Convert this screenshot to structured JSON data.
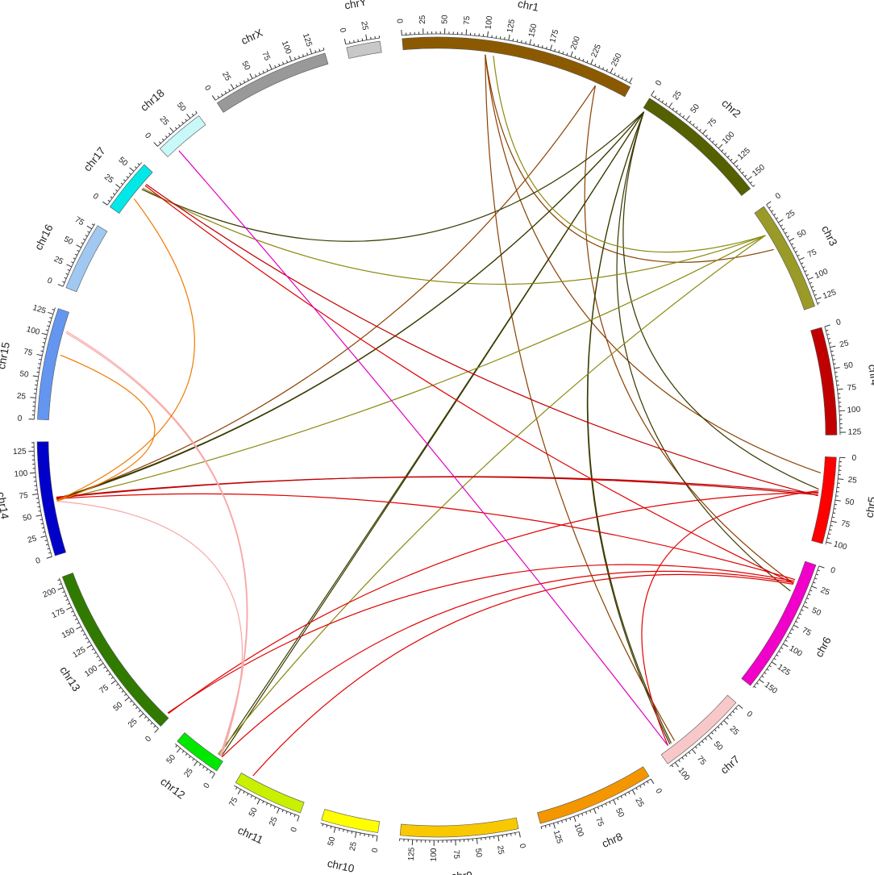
{
  "chart_data": {
    "type": "circos",
    "chromosomes": [
      {
        "name": "chr1",
        "label": "chr1",
        "length": 278,
        "color": "#8B5A00",
        "ticks": [
          0,
          25,
          50,
          75,
          100,
          125,
          150,
          175,
          200,
          225,
          250
        ]
      },
      {
        "name": "chr2",
        "label": "chr2",
        "length": 160,
        "color": "#556000",
        "ticks": [
          0,
          25,
          50,
          75,
          100,
          125,
          150
        ]
      },
      {
        "name": "chr3",
        "label": "chr3",
        "length": 132,
        "color": "#9A9A28",
        "ticks": [
          0,
          25,
          50,
          75,
          100,
          125
        ]
      },
      {
        "name": "chr4",
        "label": "chr4",
        "length": 128,
        "color": "#C00000",
        "ticks": [
          0,
          25,
          50,
          75,
          100,
          125
        ]
      },
      {
        "name": "chr5",
        "label": "chr5",
        "length": 103,
        "color": "#FF0000",
        "ticks": [
          0,
          25,
          50,
          75,
          100
        ]
      },
      {
        "name": "chr6",
        "label": "chr6",
        "length": 162,
        "color": "#F000C8",
        "ticks": [
          0,
          25,
          50,
          75,
          100,
          125,
          150
        ]
      },
      {
        "name": "chr7",
        "label": "chr7",
        "length": 108,
        "color": "#F8C8C8",
        "ticks": [
          0,
          25,
          50,
          75,
          100
        ]
      },
      {
        "name": "chr8",
        "label": "chr8",
        "length": 140,
        "color": "#F39600",
        "ticks": [
          0,
          25,
          50,
          75,
          100,
          125
        ]
      },
      {
        "name": "chr9",
        "label": "chr9",
        "length": 140,
        "color": "#F8C800",
        "ticks": [
          0,
          25,
          50,
          75,
          100,
          125
        ]
      },
      {
        "name": "chr10",
        "label": "chr10",
        "length": 68,
        "color": "#FFFF00",
        "ticks": [
          0,
          25,
          50
        ]
      },
      {
        "name": "chr11",
        "label": "chr11",
        "length": 84,
        "color": "#C8F000",
        "ticks": [
          0,
          25,
          50,
          75
        ]
      },
      {
        "name": "chr12",
        "label": "chr12",
        "length": 58,
        "color": "#00E800",
        "ticks": [
          0,
          25,
          50
        ]
      },
      {
        "name": "chr13",
        "label": "chr13",
        "length": 212,
        "color": "#307A00",
        "ticks": [
          0,
          25,
          50,
          75,
          100,
          125,
          150,
          175,
          200
        ]
      },
      {
        "name": "chr14",
        "label": "chr14",
        "length": 136,
        "color": "#0000C8",
        "ticks": [
          0,
          25,
          50,
          75,
          100,
          125
        ]
      },
      {
        "name": "chr15",
        "label": "chr15",
        "length": 133,
        "color": "#6496F0",
        "ticks": [
          0,
          25,
          50,
          75,
          100,
          125
        ]
      },
      {
        "name": "chr16",
        "label": "chr16",
        "length": 82,
        "color": "#A0C8F0",
        "ticks": [
          0,
          25,
          50,
          75
        ]
      },
      {
        "name": "chr17",
        "label": "chr17",
        "length": 64,
        "color": "#00E8E8",
        "ticks": [
          0,
          25,
          50
        ]
      },
      {
        "name": "chr18",
        "label": "chr18",
        "length": 60,
        "color": "#C8F8F8",
        "ticks": [
          0,
          25,
          50
        ]
      },
      {
        "name": "chrX",
        "label": "chrX",
        "length": 140,
        "color": "#999999",
        "ticks": [
          0,
          25,
          50,
          75,
          100,
          125
        ]
      },
      {
        "name": "chrY",
        "label": "chrY",
        "length": 40,
        "color": "#C8C8C8",
        "ticks": [
          0,
          25
        ]
      }
    ],
    "links": [
      {
        "from": [
          "chr1",
          240
        ],
        "to": [
          "chr14",
          65
        ],
        "color": "#8B4000"
      },
      {
        "from": [
          "chr1",
          240
        ],
        "to": [
          "chr6",
          30
        ],
        "color": "#8B4000"
      },
      {
        "from": [
          "chr1",
          100
        ],
        "to": [
          "chr7",
          85
        ],
        "color": "#8B4000"
      },
      {
        "from": [
          "chr1",
          100
        ],
        "to": [
          "chr3",
          50
        ],
        "color": "#8B4000"
      },
      {
        "from": [
          "chr1",
          100
        ],
        "to": [
          "chr5",
          20
        ],
        "color": "#8B4000"
      },
      {
        "from": [
          "chr2",
          3
        ],
        "to": [
          "chr14",
          65
        ],
        "color": "#3A3A00"
      },
      {
        "from": [
          "chr2",
          3
        ],
        "to": [
          "chr14",
          66
        ],
        "color": "#3A3A00"
      },
      {
        "from": [
          "chr2",
          3
        ],
        "to": [
          "chr12",
          5
        ],
        "color": "#3A3A00"
      },
      {
        "from": [
          "chr2",
          3
        ],
        "to": [
          "chr12",
          8
        ],
        "color": "#3A3A00"
      },
      {
        "from": [
          "chr2",
          3
        ],
        "to": [
          "chr7",
          90
        ],
        "color": "#3A3A00"
      },
      {
        "from": [
          "chr2",
          3
        ],
        "to": [
          "chr7",
          92
        ],
        "color": "#3A3A00"
      },
      {
        "from": [
          "chr2",
          3
        ],
        "to": [
          "chr6",
          40
        ],
        "color": "#3A3A00"
      },
      {
        "from": [
          "chr2",
          3
        ],
        "to": [
          "chr5",
          40
        ],
        "color": "#3A3A00"
      },
      {
        "from": [
          "chr2",
          3
        ],
        "to": [
          "chr17",
          40
        ],
        "color": "#3A3A00"
      },
      {
        "from": [
          "chr3",
          30
        ],
        "to": [
          "chr14",
          64
        ],
        "color": "#8A8A10"
      },
      {
        "from": [
          "chr3",
          30
        ],
        "to": [
          "chr12",
          10
        ],
        "color": "#8A8A10"
      },
      {
        "from": [
          "chr3",
          30
        ],
        "to": [
          "chr17",
          42
        ],
        "color": "#8A8A10"
      },
      {
        "from": [
          "chr3",
          30
        ],
        "to": [
          "chr1",
          110
        ],
        "color": "#8A8A10"
      },
      {
        "from": [
          "chr5",
          45
        ],
        "to": [
          "chr14",
          67
        ],
        "color": "#C00000"
      },
      {
        "from": [
          "chr5",
          47
        ],
        "to": [
          "chr14",
          68
        ],
        "color": "#C00000"
      },
      {
        "from": [
          "chr5",
          48
        ],
        "to": [
          "chr17",
          48
        ],
        "color": "#C00000"
      },
      {
        "from": [
          "chr6",
          25
        ],
        "to": [
          "chr14",
          66
        ],
        "color": "#E00000"
      },
      {
        "from": [
          "chr6",
          27
        ],
        "to": [
          "chr13",
          5
        ],
        "color": "#E00000"
      },
      {
        "from": [
          "chr6",
          29
        ],
        "to": [
          "chr12",
          4
        ],
        "color": "#E00000"
      },
      {
        "from": [
          "chr6",
          31
        ],
        "to": [
          "chr11",
          70
        ],
        "color": "#E00000"
      },
      {
        "from": [
          "chr6",
          30
        ],
        "to": [
          "chr17",
          46
        ],
        "color": "#E00000"
      },
      {
        "from": [
          "chr5",
          42
        ],
        "to": [
          "chr7",
          95
        ],
        "color": "#E00000"
      },
      {
        "from": [
          "chr5",
          44
        ],
        "to": [
          "chr13",
          4
        ],
        "color": "#E00000"
      },
      {
        "from": [
          "chr15",
          110
        ],
        "to": [
          "chr12",
          6
        ],
        "color": "#F8A8A8"
      },
      {
        "from": [
          "chr15",
          108
        ],
        "to": [
          "chr12",
          7
        ],
        "color": "#F8A8A8"
      },
      {
        "from": [
          "chr14",
          63
        ],
        "to": [
          "chr12",
          5
        ],
        "color": "#F8A8A8"
      },
      {
        "from": [
          "chr15",
          80
        ],
        "to": [
          "chr14",
          63
        ],
        "color": "#F07800"
      },
      {
        "from": [
          "chr17",
          25
        ],
        "to": [
          "chr14",
          64
        ],
        "color": "#F07800"
      },
      {
        "from": [
          "chr18",
          15
        ],
        "to": [
          "chr7",
          95
        ],
        "color": "#E000C0"
      }
    ]
  }
}
